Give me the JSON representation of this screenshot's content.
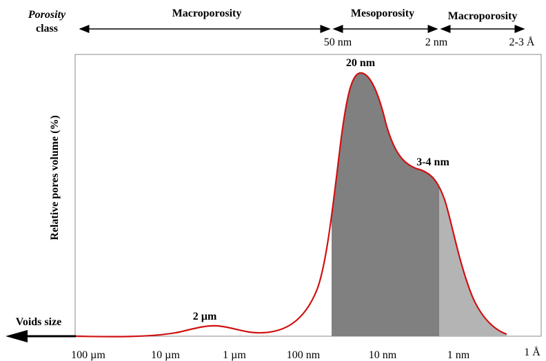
{
  "header": {
    "porosity_class": [
      "Porosity",
      "class"
    ],
    "classes": [
      {
        "label": "Macroporosity"
      },
      {
        "label": "Mesoporosity"
      },
      {
        "label": "Macroporosity"
      }
    ],
    "boundaries": [
      "50 nm",
      "2 nm",
      "2-3 Å"
    ]
  },
  "y_axis_label": "Relative pores volume (%)",
  "x_axis": {
    "name": "Voids size",
    "ticks": [
      "100 µm",
      "10 µm",
      "1 µm",
      "100 nm",
      "10 nm",
      "1 nm",
      "1 Å"
    ]
  },
  "annotations": [
    "2 µm",
    "20 nm",
    "3-4 nm"
  ]
}
